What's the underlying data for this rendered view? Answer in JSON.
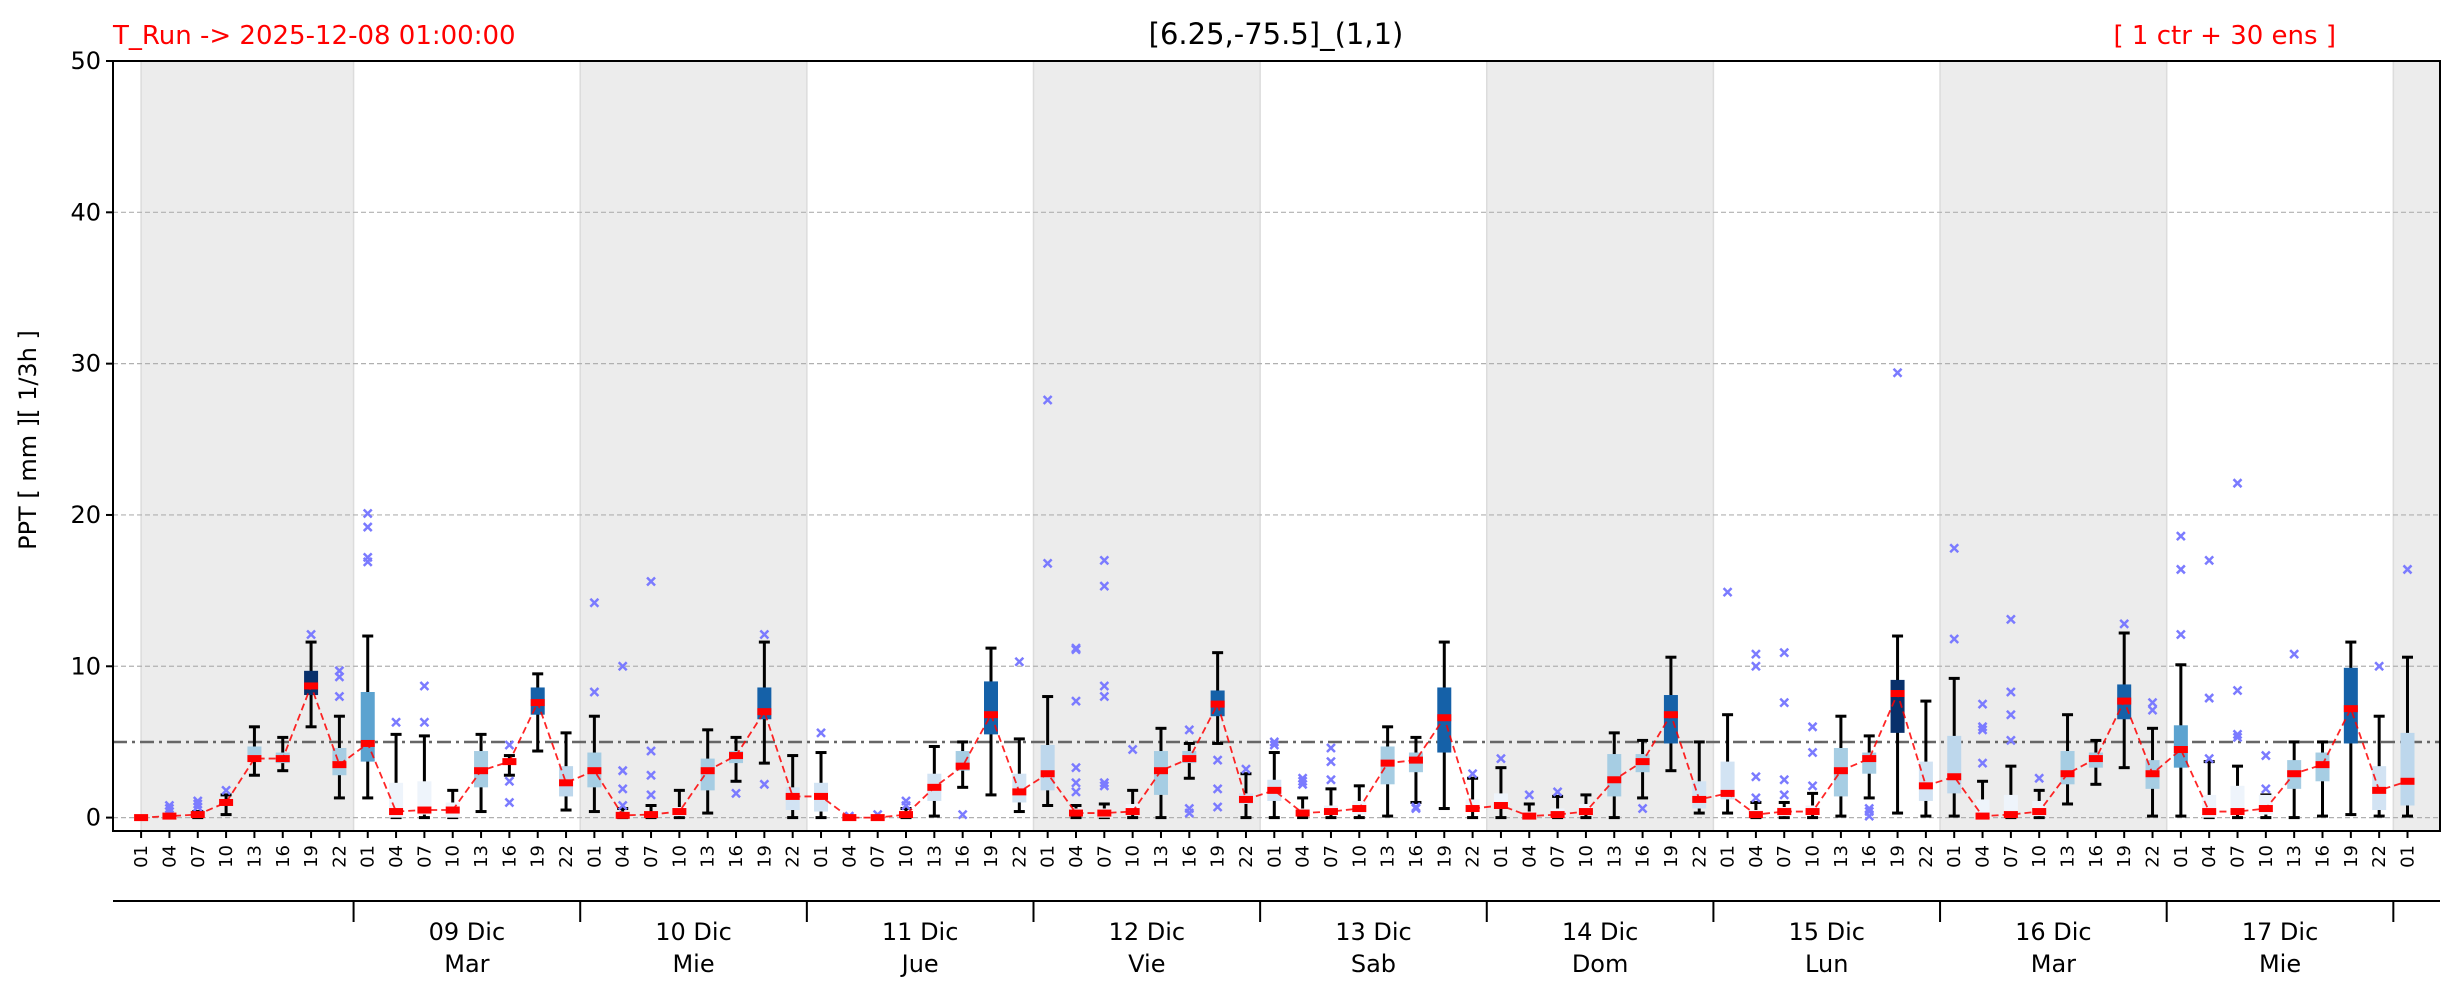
{
  "chart_data": {
    "type": "box",
    "title": "[6.25,-75.5]_(1,1)",
    "run_label": "T_Run -> 2025-12-08  01:00:00",
    "ensemble_label": "[ 1 ctr + 30 ens ]",
    "ylabel": "PPT  [ mm ][ 1/3h ]",
    "ylim": [
      -1,
      50
    ],
    "yticks": [
      0,
      10,
      20,
      30,
      40,
      50
    ],
    "threshold": 5,
    "grid": true,
    "hours": [
      "01",
      "04",
      "07",
      "10",
      "13",
      "16",
      "19",
      "22",
      "01",
      "04",
      "07",
      "10",
      "13",
      "16",
      "19",
      "22",
      "01",
      "04",
      "07",
      "10",
      "13",
      "16",
      "19",
      "22",
      "01",
      "04",
      "07",
      "10",
      "13",
      "16",
      "19",
      "22",
      "01",
      "04",
      "07",
      "10",
      "13",
      "16",
      "19",
      "22",
      "01",
      "04",
      "07",
      "10",
      "13",
      "16",
      "19",
      "22",
      "01",
      "04",
      "07",
      "10",
      "13",
      "16",
      "19",
      "22",
      "01",
      "04",
      "07",
      "10",
      "13",
      "16",
      "19",
      "22",
      "01",
      "04",
      "07",
      "10",
      "13",
      "16",
      "19",
      "22",
      "01",
      "04",
      "07",
      "10",
      "13",
      "16",
      "19",
      "22",
      "01"
    ],
    "days": [
      {
        "day": "09 Dic",
        "weekday": "Mar"
      },
      {
        "day": "10 Dic",
        "weekday": "Mie"
      },
      {
        "day": "11 Dic",
        "weekday": "Jue"
      },
      {
        "day": "12 Dic",
        "weekday": "Vie"
      },
      {
        "day": "13 Dic",
        "weekday": "Sab"
      },
      {
        "day": "14 Dic",
        "weekday": "Dom"
      },
      {
        "day": "15 Dic",
        "weekday": "Lun"
      },
      {
        "day": "16 Dic",
        "weekday": "Mar"
      },
      {
        "day": "17 Dic",
        "weekday": "Mie"
      }
    ],
    "box_fields": [
      "whisker_low",
      "q1",
      "ctr",
      "q3",
      "whisker_high",
      "shade",
      "outliers"
    ],
    "palette": [
      "#eef4fb",
      "#d2e3f3",
      "#bdd7ec",
      "#a6cde3",
      "#5ca3d0",
      "#1561a8",
      "#08306b"
    ],
    "colors": {
      "ctr": "#ff0000",
      "outlier": "#7b7bff",
      "shade_band": "#ececec",
      "threshold": "#666666"
    },
    "boxes": [
      [
        0,
        0,
        0,
        0,
        0,
        0,
        []
      ],
      [
        0,
        0,
        0.1,
        0.1,
        0.2,
        0,
        [
          0.4,
          0.6,
          0.8
        ]
      ],
      [
        0,
        0,
        0.2,
        0.3,
        0.4,
        0,
        [
          0.7,
          0.9,
          1.1
        ]
      ],
      [
        0.2,
        0.8,
        1.0,
        1.2,
        1.5,
        1,
        [
          1.8
        ]
      ],
      [
        2.8,
        3.7,
        3.9,
        4.7,
        6.0,
        3,
        []
      ],
      [
        3.1,
        3.6,
        3.9,
        4.3,
        5.3,
        3,
        []
      ],
      [
        6.0,
        8.1,
        8.7,
        9.7,
        11.6,
        6,
        [
          12.1
        ]
      ],
      [
        1.3,
        2.8,
        3.5,
        4.6,
        6.7,
        3,
        [
          8.0,
          9.3,
          9.7
        ]
      ],
      [
        1.3,
        3.7,
        4.9,
        8.3,
        12.0,
        4,
        [
          16.9,
          17.2,
          19.2,
          20.1
        ]
      ],
      [
        0,
        0,
        0.4,
        2.3,
        5.5,
        0,
        [
          6.3
        ]
      ],
      [
        0,
        0.2,
        0.5,
        2.4,
        5.4,
        0,
        [
          6.3,
          8.7
        ]
      ],
      [
        0,
        0,
        0.5,
        1.0,
        1.8,
        0,
        []
      ],
      [
        0.4,
        2.0,
        3.1,
        4.4,
        5.5,
        3,
        []
      ],
      [
        2.8,
        3.5,
        3.7,
        3.9,
        4.1,
        3,
        [
          1.0,
          2.4,
          4.8
        ]
      ],
      [
        4.4,
        6.8,
        7.6,
        8.6,
        9.5,
        5,
        []
      ],
      [
        0.5,
        1.4,
        2.3,
        3.4,
        5.6,
        2,
        []
      ],
      [
        0.4,
        2.0,
        3.1,
        4.3,
        6.7,
        3,
        [
          8.3,
          14.2
        ]
      ],
      [
        0,
        0,
        0.15,
        0.4,
        0.6,
        0,
        [
          0.8,
          1.9,
          3.1,
          10.0
        ]
      ],
      [
        0,
        0,
        0.2,
        0.4,
        0.8,
        0,
        [
          1.5,
          2.8,
          4.4,
          15.6
        ]
      ],
      [
        0,
        0.1,
        0.4,
        0.7,
        1.8,
        0,
        []
      ],
      [
        0.3,
        1.8,
        3.1,
        3.9,
        5.8,
        3,
        []
      ],
      [
        2.4,
        3.6,
        4.1,
        4.4,
        5.3,
        3,
        [
          1.6
        ]
      ],
      [
        3.6,
        6.5,
        7.0,
        8.6,
        11.6,
        5,
        [
          2.2,
          12.1
        ]
      ],
      [
        0,
        0.5,
        1.4,
        2.0,
        4.1,
        1,
        []
      ],
      [
        0,
        0.4,
        1.4,
        2.3,
        4.3,
        1,
        [
          5.6
        ]
      ],
      [
        0,
        0,
        0,
        0,
        0,
        0,
        [
          0.1
        ]
      ],
      [
        0,
        0,
        0,
        0,
        0.1,
        0,
        [
          0.2
        ]
      ],
      [
        0,
        0,
        0.2,
        0.4,
        0.6,
        0,
        [
          0.8,
          1.1
        ]
      ],
      [
        0.1,
        1.1,
        2.0,
        2.9,
        4.7,
        1,
        []
      ],
      [
        2.0,
        3.1,
        3.4,
        4.4,
        5.0,
        3,
        [
          0.2
        ]
      ],
      [
        1.5,
        5.5,
        6.8,
        9.0,
        11.2,
        5,
        []
      ],
      [
        0.4,
        1.0,
        1.7,
        2.9,
        5.2,
        1,
        [
          10.3
        ]
      ],
      [
        0.8,
        1.8,
        2.9,
        4.8,
        8.0,
        2,
        [
          16.8,
          27.6
        ]
      ],
      [
        0,
        0.1,
        0.3,
        0.6,
        0.8,
        0,
        [
          1.7,
          2.3,
          3.3,
          7.7,
          11.1,
          11.2
        ]
      ],
      [
        0,
        0,
        0.3,
        0.6,
        0.9,
        0,
        [
          2.1,
          2.3,
          8.0,
          8.7,
          15.3,
          17.0
        ]
      ],
      [
        0,
        0.2,
        0.4,
        0.9,
        1.8,
        0,
        [
          4.5
        ]
      ],
      [
        0,
        1.5,
        3.1,
        4.4,
        5.9,
        3,
        []
      ],
      [
        2.6,
        3.6,
        3.9,
        4.4,
        4.9,
        3,
        [
          0.3,
          0.6,
          5.8
        ]
      ],
      [
        4.9,
        6.7,
        7.5,
        8.4,
        10.9,
        5,
        [
          0.7,
          1.9,
          3.8
        ]
      ],
      [
        0,
        0.9,
        1.2,
        1.6,
        2.9,
        1,
        [
          3.2
        ]
      ],
      [
        0,
        1.1,
        1.8,
        2.5,
        4.3,
        1,
        [
          4.8,
          5.0
        ]
      ],
      [
        0,
        0.2,
        0.3,
        0.6,
        1.3,
        0,
        [
          2.2,
          2.4,
          2.6
        ]
      ],
      [
        0,
        0.3,
        0.4,
        0.8,
        1.9,
        0,
        [
          2.5,
          3.7,
          4.6
        ]
      ],
      [
        0,
        0.2,
        0.6,
        1.1,
        2.1,
        0,
        []
      ],
      [
        0.1,
        2.2,
        3.6,
        4.7,
        6.0,
        3,
        []
      ],
      [
        1.0,
        3.0,
        3.8,
        4.3,
        5.3,
        3,
        [
          0.6,
          0.7
        ]
      ],
      [
        0.6,
        4.3,
        6.6,
        8.6,
        11.6,
        5,
        []
      ],
      [
        0,
        0.4,
        0.6,
        1.2,
        2.6,
        0,
        [
          2.9
        ]
      ],
      [
        0,
        0.8,
        0.8,
        1.6,
        3.3,
        0,
        [
          3.9
        ]
      ],
      [
        0,
        0,
        0.1,
        0.4,
        0.9,
        0,
        [
          1.5
        ]
      ],
      [
        0,
        0,
        0.2,
        0.6,
        1.4,
        0,
        [
          1.7
        ]
      ],
      [
        0,
        0.2,
        0.4,
        0.9,
        1.5,
        0,
        []
      ],
      [
        0,
        1.4,
        2.5,
        4.2,
        5.6,
        3,
        []
      ],
      [
        1.3,
        3.0,
        3.7,
        4.2,
        5.1,
        3,
        [
          0.6
        ]
      ],
      [
        3.1,
        4.9,
        6.8,
        8.1,
        10.6,
        5,
        []
      ],
      [
        0.3,
        0.6,
        1.2,
        2.4,
        5.0,
        1,
        []
      ],
      [
        0.3,
        1.2,
        1.6,
        3.7,
        6.8,
        1,
        [
          14.9
        ]
      ],
      [
        0,
        0,
        0.2,
        0.5,
        1.0,
        0,
        [
          1.3,
          2.7,
          10.0,
          10.8
        ]
      ],
      [
        0,
        0.1,
        0.4,
        0.7,
        1.0,
        0,
        [
          1.5,
          2.5,
          7.6,
          10.9
        ]
      ],
      [
        0,
        0.2,
        0.4,
        0.8,
        1.6,
        0,
        [
          2.1,
          4.3,
          6.0
        ]
      ],
      [
        0.1,
        1.4,
        3.1,
        4.6,
        6.7,
        3,
        []
      ],
      [
        1.3,
        2.9,
        3.9,
        4.3,
        5.4,
        3,
        [
          0.1,
          0.4,
          0.6
        ]
      ],
      [
        0.3,
        5.6,
        8.2,
        9.1,
        12.0,
        6,
        [
          29.4
        ]
      ],
      [
        0.1,
        1.1,
        2.1,
        3.7,
        7.7,
        1,
        []
      ],
      [
        0.1,
        1.6,
        2.7,
        5.4,
        9.2,
        2,
        [
          11.8,
          17.8
        ]
      ],
      [
        0,
        0,
        0.1,
        1.2,
        2.4,
        0,
        [
          3.6,
          5.8,
          6.0,
          7.5
        ]
      ],
      [
        0,
        0.1,
        0.2,
        1.5,
        3.4,
        0,
        [
          5.1,
          6.8,
          8.3,
          13.1
        ]
      ],
      [
        0,
        0.1,
        0.4,
        1.1,
        1.8,
        0,
        [
          2.6
        ]
      ],
      [
        0.9,
        2.2,
        2.9,
        4.4,
        6.8,
        3,
        []
      ],
      [
        2.2,
        3.3,
        3.9,
        4.3,
        5.1,
        3,
        []
      ],
      [
        3.3,
        6.5,
        7.7,
        8.8,
        12.2,
        5,
        [
          12.8
        ]
      ],
      [
        0.1,
        1.9,
        2.9,
        3.8,
        5.9,
        3,
        [
          7.1,
          7.6
        ]
      ],
      [
        0.1,
        3.3,
        4.5,
        6.1,
        10.1,
        4,
        [
          12.1,
          16.4,
          18.6
        ]
      ],
      [
        0,
        0,
        0.4,
        1.5,
        3.7,
        0,
        [
          3.9,
          7.9,
          17.0
        ]
      ],
      [
        0,
        0.3,
        0.4,
        2.1,
        3.4,
        0,
        [
          5.3,
          5.5,
          8.4,
          22.1
        ]
      ],
      [
        0,
        0.2,
        0.6,
        1.5,
        1.5,
        0,
        [
          1.9,
          4.1
        ]
      ],
      [
        0,
        1.9,
        2.9,
        3.8,
        5.0,
        3,
        [
          10.8
        ]
      ],
      [
        0.1,
        2.4,
        3.5,
        4.3,
        5.0,
        3,
        []
      ],
      [
        0.2,
        4.9,
        7.2,
        9.9,
        11.6,
        5,
        []
      ],
      [
        0.1,
        0.5,
        1.8,
        3.4,
        6.7,
        1,
        [
          10.0
        ]
      ],
      [
        0.1,
        0.8,
        2.4,
        5.6,
        10.6,
        2,
        [
          16.4
        ]
      ]
    ]
  }
}
